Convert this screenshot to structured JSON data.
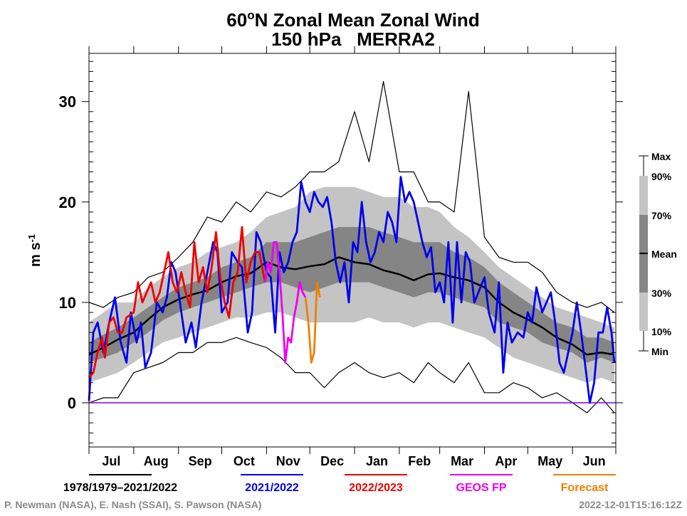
{
  "chart_data": {
    "type": "line",
    "title_line1_main": "60",
    "title_line1_sup": "o",
    "title_line1_rest": "N Zonal Mean Zonal Wind",
    "title_line2": "150 hPa   MERRA2",
    "ylabel_main": "m s",
    "ylabel_sup": "-1",
    "ylim": [
      -4.4,
      34.8
    ],
    "yticks": [
      0,
      10,
      20,
      30
    ],
    "x_months": [
      "Jul",
      "Aug",
      "Sep",
      "Oct",
      "Nov",
      "Dec",
      "Jan",
      "Feb",
      "Mar",
      "Apr",
      "May",
      "Jun"
    ],
    "zero_line_color": "#8000ff",
    "band_colors": {
      "p10_p90": "#c4c4c4",
      "p30_p70": "#858585"
    },
    "band_legend": {
      "max": "Max",
      "p90": "90%",
      "p70": "70%",
      "mean": "Mean",
      "p30": "30%",
      "p10": "10%",
      "min": "Min"
    },
    "climatology": {
      "name": "1978/1979–2021/2022",
      "color": "#000000",
      "dates": [
        "07-01",
        "07-11",
        "07-21",
        "08-01",
        "08-11",
        "08-21",
        "09-01",
        "09-11",
        "09-21",
        "10-01",
        "10-11",
        "10-21",
        "11-01",
        "11-11",
        "11-21",
        "12-01",
        "12-11",
        "12-21",
        "01-01",
        "01-11",
        "01-21",
        "02-01",
        "02-11",
        "02-21",
        "03-01",
        "03-11",
        "03-21",
        "04-01",
        "04-11",
        "04-21",
        "05-01",
        "05-11",
        "05-21",
        "06-01",
        "06-11",
        "06-21",
        "06-30"
      ],
      "mean": [
        4.8,
        5.5,
        6.3,
        7.0,
        8.3,
        9.5,
        10.3,
        10.8,
        11.2,
        12.0,
        12.6,
        12.9,
        14.0,
        13.5,
        13.3,
        13.6,
        13.8,
        14.5,
        14.0,
        13.8,
        13.2,
        12.8,
        12.2,
        12.8,
        12.9,
        12.5,
        12.2,
        11.5,
        10.0,
        9.0,
        8.3,
        7.5,
        6.5,
        5.8,
        4.8,
        5.0,
        4.8
      ],
      "p10": [
        2.0,
        2.5,
        3.0,
        4.0,
        5.0,
        6.0,
        6.5,
        7.0,
        7.5,
        8.0,
        8.5,
        8.5,
        9.0,
        9.0,
        8.5,
        8.0,
        8.0,
        8.0,
        8.0,
        8.5,
        8.0,
        8.0,
        7.5,
        8.0,
        8.0,
        7.5,
        7.0,
        6.5,
        5.5,
        4.5,
        4.0,
        3.5,
        3.0,
        2.5,
        2.0,
        2.5,
        2.0
      ],
      "p30": [
        4.0,
        4.5,
        5.0,
        6.0,
        7.0,
        8.2,
        9.0,
        9.5,
        10.0,
        10.5,
        11.0,
        11.5,
        12.0,
        12.0,
        11.5,
        11.0,
        11.5,
        12.0,
        12.0,
        12.0,
        11.5,
        11.0,
        10.5,
        11.0,
        11.0,
        10.5,
        10.0,
        9.5,
        8.0,
        7.5,
        7.0,
        6.0,
        5.5,
        5.0,
        4.0,
        4.5,
        4.0
      ],
      "p70": [
        6.0,
        6.8,
        7.5,
        8.5,
        9.5,
        10.5,
        11.5,
        12.0,
        12.5,
        13.5,
        14.0,
        14.5,
        16.0,
        16.0,
        16.0,
        16.5,
        17.0,
        17.5,
        17.5,
        17.5,
        17.0,
        16.5,
        16.0,
        16.0,
        16.0,
        15.0,
        14.5,
        13.5,
        12.0,
        11.0,
        10.0,
        9.0,
        8.0,
        7.5,
        6.5,
        6.5,
        6.0
      ],
      "p90": [
        8.0,
        9.0,
        10.0,
        10.0,
        11.5,
        12.5,
        13.5,
        14.0,
        15.0,
        15.5,
        16.0,
        17.0,
        18.5,
        19.0,
        19.5,
        21.0,
        21.5,
        21.5,
        21.5,
        21.0,
        20.5,
        20.5,
        19.5,
        19.5,
        19.0,
        17.5,
        16.5,
        15.0,
        13.5,
        12.5,
        11.5,
        10.5,
        9.5,
        9.0,
        8.5,
        8.0,
        7.5
      ],
      "min": [
        0.0,
        0.5,
        0.5,
        3.0,
        3.5,
        4.0,
        5.0,
        5.0,
        6.0,
        6.0,
        6.5,
        6.0,
        5.5,
        4.5,
        3.0,
        3.0,
        1.5,
        3.0,
        4.0,
        3.0,
        2.5,
        3.0,
        2.0,
        4.0,
        3.0,
        2.0,
        4.0,
        1.0,
        1.0,
        2.0,
        1.5,
        0.5,
        1.0,
        0.0,
        -1.0,
        0.5,
        -1.0
      ],
      "max": [
        10.0,
        9.5,
        10.5,
        11.0,
        12.5,
        13.0,
        14.5,
        16.0,
        18.5,
        18.0,
        20.0,
        19.0,
        21.0,
        20.5,
        21.5,
        23.0,
        23.0,
        24.0,
        29.0,
        24.0,
        32.0,
        23.0,
        23.0,
        20.0,
        20.0,
        19.0,
        31.0,
        16.5,
        14.5,
        14.0,
        14.0,
        13.0,
        11.0,
        10.0,
        9.5,
        10.0,
        9.0
      ]
    },
    "series": [
      {
        "name": "2021/2022",
        "color": "#0000ee",
        "dates": [
          "2021-07-01",
          "2021-07-04",
          "2021-07-07",
          "2021-07-11",
          "2021-07-15",
          "2021-07-19",
          "2021-07-23",
          "2021-07-27",
          "2021-07-30",
          "2021-08-03",
          "2021-08-06",
          "2021-08-09",
          "2021-08-13",
          "2021-08-17",
          "2021-08-21",
          "2021-08-24",
          "2021-08-27",
          "2021-08-30",
          "2021-09-03",
          "2021-09-06",
          "2021-09-10",
          "2021-09-13",
          "2021-09-17",
          "2021-09-21",
          "2021-09-25",
          "2021-09-28",
          "2021-10-01",
          "2021-10-05",
          "2021-10-08",
          "2021-10-12",
          "2021-10-15",
          "2021-10-19",
          "2021-10-22",
          "2021-10-25",
          "2021-10-28",
          "2021-11-01",
          "2021-11-04",
          "2021-11-07",
          "2021-11-10",
          "2021-11-13",
          "2021-11-16",
          "2021-11-19",
          "2021-11-22",
          "2021-11-25",
          "2021-11-28",
          "2021-12-01",
          "2021-12-04",
          "2021-12-07",
          "2021-12-10",
          "2021-12-13",
          "2021-12-16",
          "2021-12-19",
          "2021-12-22",
          "2021-12-25",
          "2021-12-28",
          "2021-12-31",
          "2022-01-03",
          "2022-01-06",
          "2022-01-09",
          "2022-01-12",
          "2022-01-15",
          "2022-01-18",
          "2022-01-21",
          "2022-01-24",
          "2022-01-27",
          "2022-01-30",
          "2022-02-02",
          "2022-02-05",
          "2022-02-08",
          "2022-02-11",
          "2022-02-14",
          "2022-02-17",
          "2022-02-20",
          "2022-02-23",
          "2022-02-26",
          "2022-03-01",
          "2022-03-04",
          "2022-03-07",
          "2022-03-10",
          "2022-03-13",
          "2022-03-16",
          "2022-03-19",
          "2022-03-22",
          "2022-03-25",
          "2022-04-01",
          "2022-04-04",
          "2022-04-08",
          "2022-04-11",
          "2022-04-14",
          "2022-04-17",
          "2022-04-20",
          "2022-04-24",
          "2022-04-28",
          "2022-05-01",
          "2022-05-04",
          "2022-05-07",
          "2022-05-11",
          "2022-05-14",
          "2022-05-17",
          "2022-05-20",
          "2022-05-23",
          "2022-05-26",
          "2022-06-01",
          "2022-06-04",
          "2022-06-07",
          "2022-06-10",
          "2022-06-13",
          "2022-06-16",
          "2022-06-19",
          "2022-06-22",
          "2022-06-25",
          "2022-06-28",
          "2022-06-30"
        ],
        "values": [
          0.2,
          7,
          8,
          5,
          8,
          10.5,
          6,
          4,
          9,
          6,
          8,
          3.5,
          5,
          10,
          9,
          10.5,
          14,
          13,
          9,
          6,
          8,
          5.5,
          10,
          13,
          16,
          15,
          9,
          10,
          15,
          14,
          13.5,
          7,
          9,
          17,
          16,
          13,
          12.5,
          7,
          15,
          13,
          14,
          16,
          17,
          22,
          20,
          19,
          21,
          20,
          19.5,
          20.5,
          18,
          14,
          12,
          14,
          10,
          16,
          15,
          20,
          16,
          14,
          15,
          17,
          16,
          19,
          18,
          16,
          22.5,
          20,
          21,
          20,
          18,
          16,
          14.5,
          15.5,
          11,
          12,
          10,
          16,
          8,
          16,
          10,
          15,
          14,
          10,
          12.5,
          9,
          7,
          12,
          3,
          8,
          6,
          7,
          6.5,
          9,
          8,
          11.5,
          9,
          10,
          11,
          8,
          4,
          3,
          7,
          10,
          7,
          3.5,
          0,
          2,
          7,
          7,
          9.5,
          7,
          4
        ]
      },
      {
        "name": "2022/2023",
        "color": "#ee0000",
        "dates": [
          "2022-07-01",
          "2022-07-04",
          "2022-07-07",
          "2022-07-10",
          "2022-07-12",
          "2022-07-15",
          "2022-07-18",
          "2022-07-21",
          "2022-07-24",
          "2022-07-27",
          "2022-08-01",
          "2022-08-04",
          "2022-08-07",
          "2022-08-10",
          "2022-08-13",
          "2022-08-16",
          "2022-08-19",
          "2022-08-22",
          "2022-08-25",
          "2022-08-28",
          "2022-08-31",
          "2022-09-03",
          "2022-09-06",
          "2022-09-09",
          "2022-09-12",
          "2022-09-15",
          "2022-09-18",
          "2022-09-21",
          "2022-09-24",
          "2022-09-27",
          "2022-09-30",
          "2022-10-03",
          "2022-10-06",
          "2022-10-09",
          "2022-10-12",
          "2022-10-15",
          "2022-10-18",
          "2022-10-21",
          "2022-10-24",
          "2022-10-27",
          "2022-10-31"
        ],
        "values": [
          2.5,
          3,
          5,
          6.5,
          4.5,
          8,
          8.5,
          7,
          7,
          8.5,
          9,
          12,
          10,
          11,
          12,
          10,
          11,
          13,
          15,
          12,
          11,
          13,
          11,
          9.5,
          16,
          12,
          13.5,
          11,
          13.5,
          17,
          12.5,
          10,
          8.5,
          12,
          13,
          17.5,
          12,
          14,
          15,
          15,
          12
        ]
      },
      {
        "name": "GEOS FP",
        "color": "#ee00ee",
        "dates": [
          "2022-10-31",
          "2022-11-02",
          "2022-11-04",
          "2022-11-06",
          "2022-11-08",
          "2022-11-10",
          "2022-11-12",
          "2022-11-14",
          "2022-11-16",
          "2022-11-18",
          "2022-11-20",
          "2022-11-22",
          "2022-11-24",
          "2022-11-26",
          "2022-11-28"
        ],
        "values": [
          12,
          14,
          13,
          16,
          16,
          13,
          9,
          4,
          6.5,
          6,
          8.5,
          10,
          12,
          11,
          10.5
        ]
      },
      {
        "name": "Forecast",
        "color": "#ee8000",
        "dates": [
          "2022-11-28",
          "2022-11-30",
          "2022-12-02",
          "2022-12-04",
          "2022-12-06",
          "2022-12-08"
        ],
        "values": [
          10.5,
          8,
          4,
          5,
          12,
          10.5
        ]
      }
    ]
  },
  "footer": {
    "credits": "P. Newman (NASA), E. Nash (SSAI), S. Pawson (NASA)",
    "timestamp": "2022-12-01T15:16:12Z"
  }
}
